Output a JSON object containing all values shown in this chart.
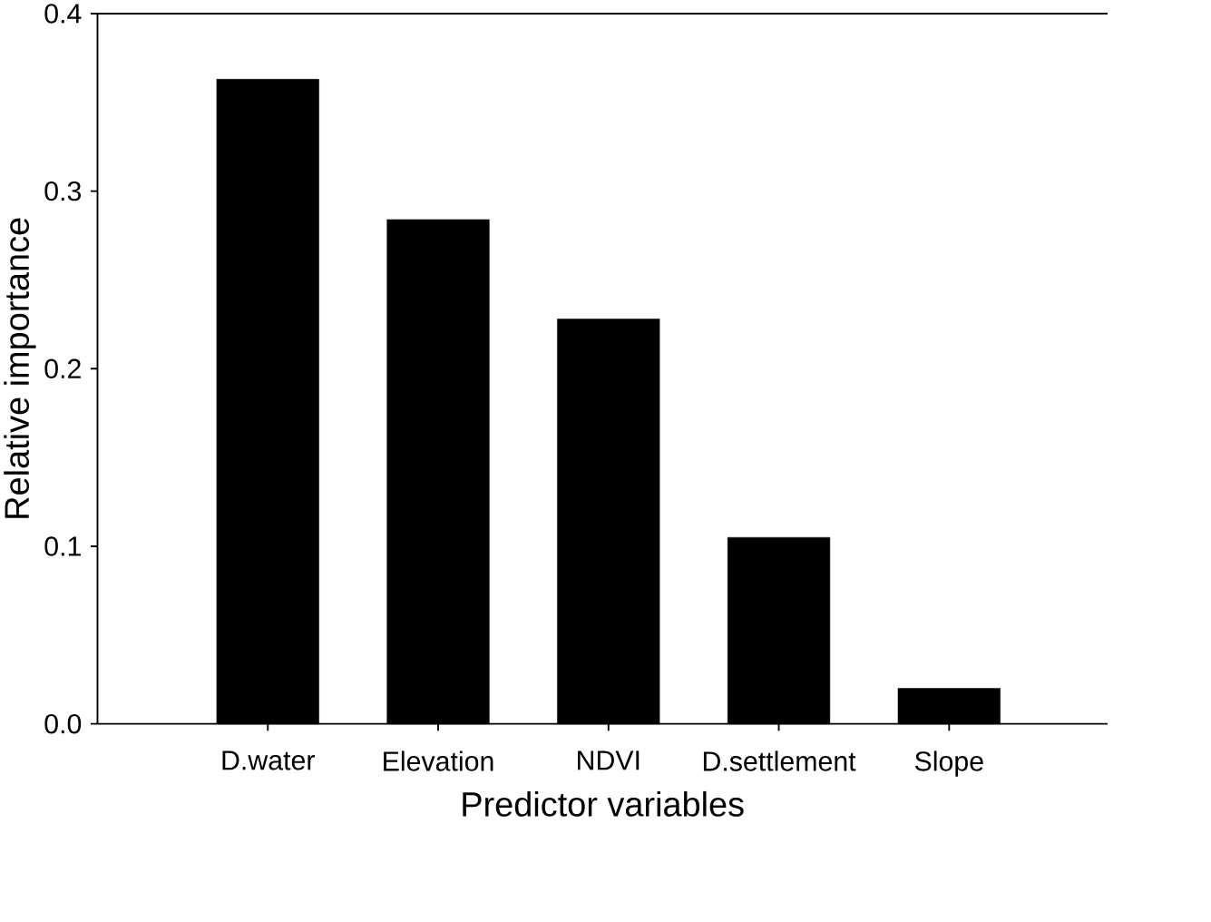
{
  "chart_data": {
    "type": "bar",
    "xlabel": "Predictor variables",
    "ylabel": "Relative importance",
    "categories": [
      "D.water",
      "Elevation",
      "NDVI",
      "D.settlement",
      "Slope"
    ],
    "values": [
      0.363,
      0.284,
      0.228,
      0.105,
      0.02
    ],
    "color": "#000000",
    "ylim": [
      0,
      0.4
    ],
    "yticks": [
      {
        "value": 0,
        "label": "0.0"
      },
      0.1,
      0.2,
      0.3,
      0.4
    ],
    "grid": false
  }
}
